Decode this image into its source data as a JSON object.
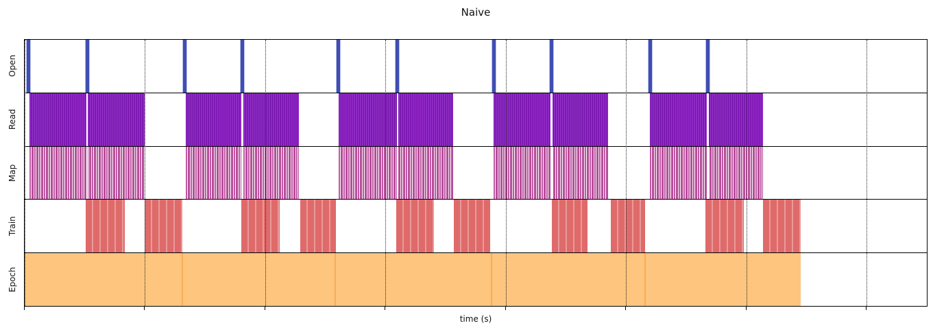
{
  "chart_data": {
    "type": "timeline",
    "title": "Naive",
    "xlabel": "time (s)",
    "xlim": [
      0,
      7.5
    ],
    "gridlines_x": [
      0,
      1,
      2,
      3,
      4,
      5,
      6,
      7
    ],
    "grid_style": "dotted-vertical",
    "tick_labels_shown": false,
    "rows": [
      {
        "label": "Open",
        "kind": "event",
        "color": "#3f4eb3",
        "events": [
          0.03,
          0.52,
          1.33,
          1.81,
          2.61,
          3.1,
          3.9,
          4.38,
          5.2,
          5.68
        ]
      },
      {
        "label": "Read",
        "kind": "interval",
        "style": "read-bar",
        "color": "#8a1fc0",
        "color_dark": "#7313a8",
        "intervals": [
          [
            0.04,
            1.0
          ],
          [
            1.34,
            2.28
          ],
          [
            2.61,
            3.56
          ],
          [
            3.9,
            4.85
          ],
          [
            5.2,
            6.14
          ]
        ],
        "gaps": [
          0.52,
          1.81,
          3.1,
          4.38,
          5.68
        ]
      },
      {
        "label": "Map",
        "kind": "interval",
        "style": "map-bar",
        "color": "#bf57a3",
        "intervals": [
          [
            0.04,
            1.0
          ],
          [
            1.34,
            2.28
          ],
          [
            2.61,
            3.56
          ],
          [
            3.9,
            4.85
          ],
          [
            5.2,
            6.14
          ]
        ],
        "gaps": [
          0.52,
          1.81,
          3.1,
          4.38,
          5.68
        ]
      },
      {
        "label": "Train",
        "kind": "interval",
        "style": "train-bar",
        "color": "#df6a6a",
        "intervals": [
          [
            0.51,
            0.83
          ],
          [
            1.0,
            1.31
          ],
          [
            1.8,
            2.12
          ],
          [
            2.29,
            2.59
          ],
          [
            3.09,
            3.4
          ],
          [
            3.57,
            3.87
          ],
          [
            4.38,
            4.68
          ],
          [
            4.87,
            5.16
          ],
          [
            5.66,
            5.98
          ],
          [
            6.14,
            6.45
          ]
        ]
      },
      {
        "label": "Epoch",
        "kind": "interval",
        "style": "epoch-bar",
        "color": "#fdc57d",
        "divider_color": "#f9ad58",
        "intervals": [
          [
            0.0,
            1.31
          ],
          [
            1.31,
            2.58
          ],
          [
            2.58,
            3.88
          ],
          [
            3.88,
            5.16
          ],
          [
            5.16,
            6.45
          ]
        ],
        "dividers": [
          1.31,
          2.58,
          3.88,
          5.16
        ]
      }
    ]
  }
}
